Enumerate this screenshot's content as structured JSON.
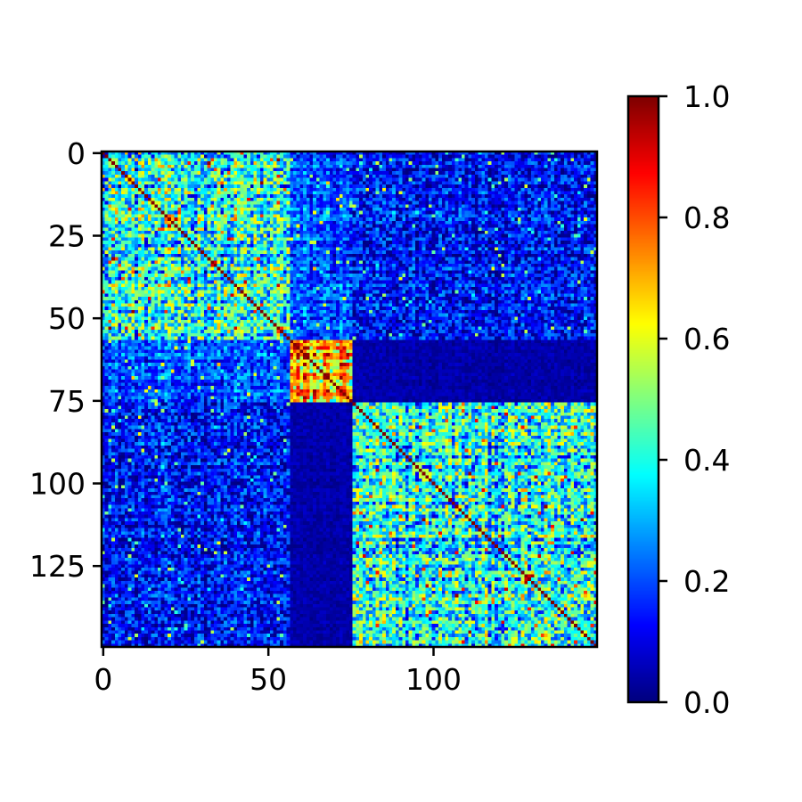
{
  "chart_data": {
    "type": "heatmap",
    "description_free": true,
    "matrix_size": 150,
    "colormap": "jet",
    "value_range": [
      0.0,
      1.0
    ],
    "x_ticks": [
      {
        "value": 0,
        "label": "0"
      },
      {
        "value": 50,
        "label": "50"
      },
      {
        "value": 100,
        "label": "100"
      }
    ],
    "y_ticks": [
      {
        "value": 0,
        "label": "0"
      },
      {
        "value": 25,
        "label": "25"
      },
      {
        "value": 50,
        "label": "50"
      },
      {
        "value": 75,
        "label": "75"
      },
      {
        "value": 100,
        "label": "100"
      },
      {
        "value": 125,
        "label": "125"
      }
    ],
    "colorbar_ticks": [
      {
        "value": 0.0,
        "label": "0.0"
      },
      {
        "value": 0.2,
        "label": "0.2"
      },
      {
        "value": 0.4,
        "label": "0.4"
      },
      {
        "value": 0.6,
        "label": "0.6"
      },
      {
        "value": 0.8,
        "label": "0.8"
      },
      {
        "value": 1.0,
        "label": "1.0"
      }
    ],
    "blocks": [
      {
        "rows": [
          0,
          56
        ],
        "cols": [
          0,
          56
        ],
        "mean": 0.4,
        "spread": 0.22
      },
      {
        "rows": [
          0,
          56
        ],
        "cols": [
          57,
          75
        ],
        "mean": 0.2,
        "spread": 0.12
      },
      {
        "rows": [
          0,
          56
        ],
        "cols": [
          76,
          149
        ],
        "mean": 0.13,
        "spread": 0.14
      },
      {
        "rows": [
          57,
          75
        ],
        "cols": [
          0,
          56
        ],
        "mean": 0.22,
        "spread": 0.12
      },
      {
        "rows": [
          57,
          75
        ],
        "cols": [
          57,
          75
        ],
        "mean": 0.68,
        "spread": 0.18
      },
      {
        "rows": [
          57,
          75
        ],
        "cols": [
          76,
          149
        ],
        "mean": 0.04,
        "spread": 0.03
      },
      {
        "rows": [
          76,
          149
        ],
        "cols": [
          0,
          56
        ],
        "mean": 0.13,
        "spread": 0.14
      },
      {
        "rows": [
          76,
          149
        ],
        "cols": [
          57,
          75
        ],
        "mean": 0.04,
        "spread": 0.03
      },
      {
        "rows": [
          76,
          149
        ],
        "cols": [
          76,
          149
        ],
        "mean": 0.38,
        "spread": 0.22
      }
    ],
    "diagonal_value": 1.0
  }
}
